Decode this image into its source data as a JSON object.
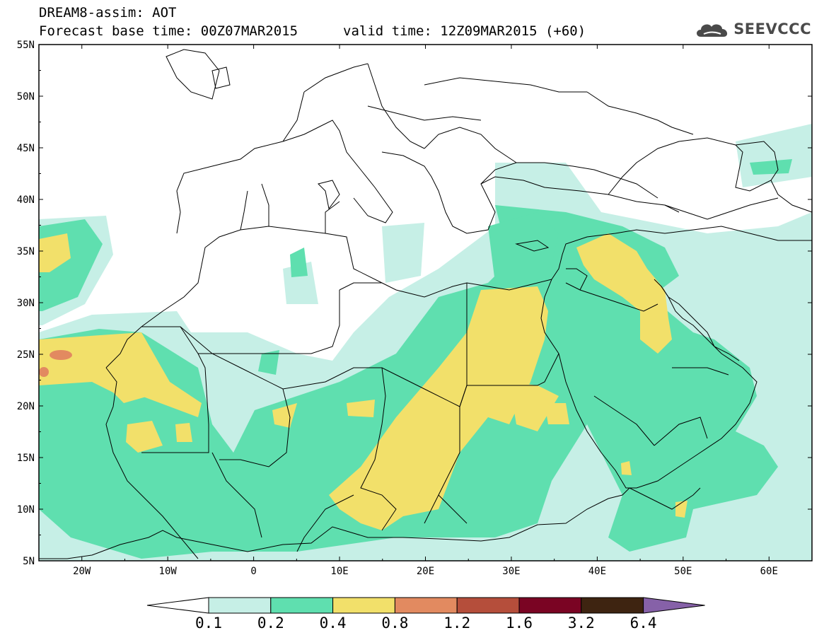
{
  "header": {
    "title": "DREAM8-assim: AOT",
    "forecast_base": "Forecast base time: 00Z07MAR2015",
    "valid_time": "valid time: 12Z09MAR2015 (+60)",
    "brand": "SEEVCCC"
  },
  "map": {
    "extent": {
      "lon": [
        -25,
        65
      ],
      "lat": [
        5,
        55
      ]
    },
    "lat_labels": [
      "55N",
      "50N",
      "45N",
      "40N",
      "35N",
      "30N",
      "25N",
      "20N",
      "15N",
      "10N",
      "5N"
    ],
    "lon_labels": [
      "20W",
      "10W",
      "0",
      "10E",
      "20E",
      "30E",
      "40E",
      "50E",
      "60E"
    ],
    "background_color": "#ffffff",
    "border_color": "#000000"
  },
  "legend": {
    "levels": [
      "0.1",
      "0.2",
      "0.4",
      "0.8",
      "1.2",
      "1.6",
      "3.2",
      "6.4"
    ],
    "colors": [
      "#ffffff",
      "#c6efe6",
      "#5fdfaf",
      "#f2e06a",
      "#e28a60",
      "#b54e3b",
      "#7a0423",
      "#3e2411",
      "#8661a8"
    ]
  }
}
